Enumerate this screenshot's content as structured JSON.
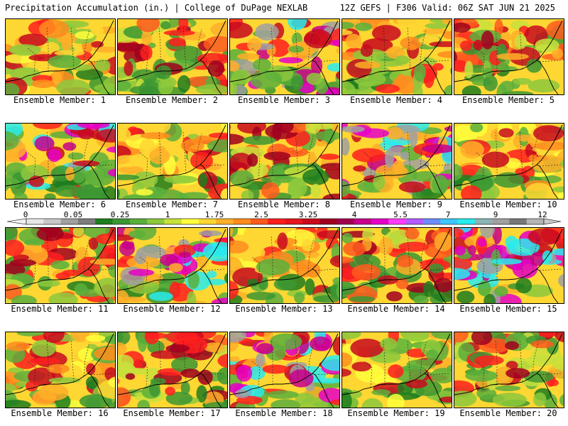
{
  "header": {
    "left": "Precipitation Accumulation (in.) | College of DuPage NEXLAB",
    "right": "12Z GEFS | F306 Valid: 06Z SAT JUN 21 2025"
  },
  "panels": [
    {
      "caption": "Ensemble Member: 1"
    },
    {
      "caption": "Ensemble Member: 2"
    },
    {
      "caption": "Ensemble Member: 3"
    },
    {
      "caption": "Ensemble Member: 4"
    },
    {
      "caption": "Ensemble Member: 5"
    },
    {
      "caption": "Ensemble Member: 6"
    },
    {
      "caption": "Ensemble Member: 7"
    },
    {
      "caption": "Ensemble Member: 8"
    },
    {
      "caption": "Ensemble Member: 9"
    },
    {
      "caption": "Ensemble Member: 10"
    },
    {
      "caption": "Ensemble Member: 11"
    },
    {
      "caption": "Ensemble Member: 12"
    },
    {
      "caption": "Ensemble Member: 13"
    },
    {
      "caption": "Ensemble Member: 14"
    },
    {
      "caption": "Ensemble Member: 15"
    },
    {
      "caption": "Ensemble Member: 16"
    },
    {
      "caption": "Ensemble Member: 17"
    },
    {
      "caption": "Ensemble Member: 18"
    },
    {
      "caption": "Ensemble Member: 19"
    },
    {
      "caption": "Ensemble Member: 20"
    }
  ],
  "colorbar": {
    "labels": [
      "0",
      "0.05",
      "0.25",
      "1",
      "1.75",
      "2.5",
      "3.25",
      "4",
      "5.5",
      "7",
      "9",
      "12"
    ],
    "colors": [
      "#e6e6e6",
      "#c8c8c8",
      "#a0a0a0",
      "#7d7d7d",
      "#1e7d1e",
      "#3c9632",
      "#5aaf3c",
      "#8cc83c",
      "#c8e13c",
      "#ffff3c",
      "#ffd732",
      "#ffaf28",
      "#ff8c1e",
      "#ff5a1e",
      "#ff1e1e",
      "#e6141e",
      "#c80a1e",
      "#a0001e",
      "#a00050",
      "#c8008c",
      "#e600c8",
      "#ff3cff",
      "#b45aff",
      "#6e8cff",
      "#3cc8ff",
      "#28ebf0",
      "#8cb4b4",
      "#a0a0a0",
      "#787878",
      "#b4b4b4"
    ]
  }
}
